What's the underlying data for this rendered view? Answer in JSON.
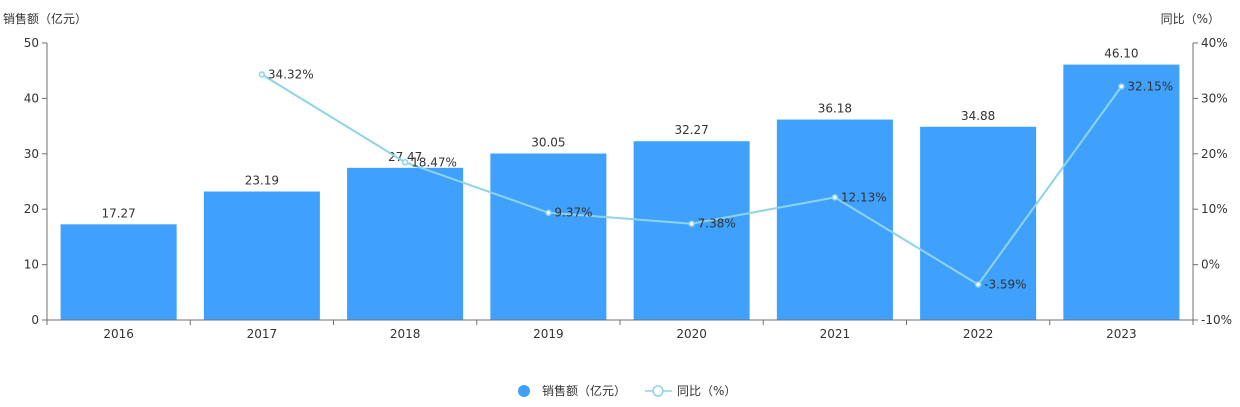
{
  "chart_data": {
    "type": "bar",
    "categories": [
      "2016",
      "2017",
      "2018",
      "2019",
      "2020",
      "2021",
      "2022",
      "2023"
    ],
    "series": [
      {
        "name": "销售额（亿元）",
        "type": "bar",
        "axis": "left",
        "values": [
          17.27,
          23.19,
          27.47,
          30.05,
          32.27,
          36.18,
          34.88,
          46.1
        ],
        "labels": [
          "17.27",
          "23.19",
          "27.47",
          "30.05",
          "32.27",
          "36.18",
          "34.88",
          "46.10"
        ],
        "color": "#3fa1fc"
      },
      {
        "name": "同比（%）",
        "type": "line",
        "axis": "right",
        "values": [
          null,
          34.32,
          18.47,
          9.37,
          7.38,
          12.13,
          -3.59,
          32.15
        ],
        "labels": [
          "",
          "34.32%",
          "18.47%",
          "9.37%",
          "7.38%",
          "12.13%",
          "-3.59%",
          "32.15%"
        ],
        "color": "#8dd4ea"
      }
    ],
    "ylabel_left": "销售额（亿元）",
    "ylabel_right": "同比（%）",
    "ylim_left": [
      0,
      50
    ],
    "yticks_left": [
      "0",
      "10",
      "20",
      "30",
      "40",
      "50"
    ],
    "ylim_right": [
      -10,
      40
    ],
    "yticks_right": [
      "-10%",
      "0%",
      "10%",
      "20%",
      "30%",
      "40%"
    ],
    "grid": false,
    "legend_position": "bottom"
  }
}
